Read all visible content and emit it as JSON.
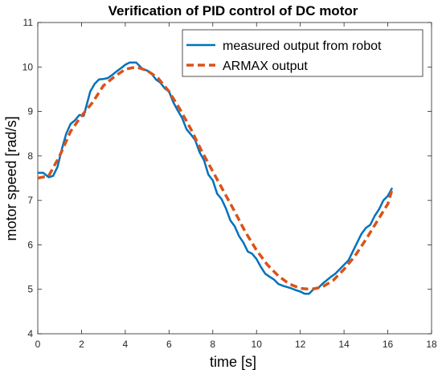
{
  "chart_data": {
    "type": "line",
    "title": "Verification of PID control of DC motor",
    "xlabel": "time [s]",
    "ylabel": "motor speed [rad/s]",
    "xlim": [
      0,
      18
    ],
    "ylim": [
      4,
      11
    ],
    "xticks": [
      0,
      2,
      4,
      6,
      8,
      10,
      12,
      14,
      16,
      18
    ],
    "yticks": [
      4,
      5,
      6,
      7,
      8,
      9,
      10,
      11
    ],
    "xtick_labels": [
      "0",
      "2",
      "4",
      "6",
      "8",
      "10",
      "12",
      "14",
      "16",
      "18"
    ],
    "ytick_labels": [
      "4",
      "5",
      "6",
      "7",
      "8",
      "9",
      "10",
      "11"
    ],
    "grid": false,
    "legend_position": "top-right",
    "series": [
      {
        "name": "measured output from robot",
        "color": "#0072BD",
        "style": "solid",
        "x": [
          0.0,
          0.25,
          0.5,
          0.7,
          0.9,
          1.1,
          1.3,
          1.5,
          1.7,
          1.9,
          2.1,
          2.4,
          2.6,
          2.8,
          3.0,
          3.2,
          3.4,
          3.6,
          3.8,
          4.0,
          4.2,
          4.5,
          4.8,
          5.0,
          5.2,
          5.4,
          5.6,
          5.8,
          6.0,
          6.2,
          6.4,
          6.6,
          6.8,
          7.0,
          7.2,
          7.4,
          7.6,
          7.8,
          8.0,
          8.2,
          8.4,
          8.6,
          8.8,
          9.0,
          9.2,
          9.4,
          9.6,
          9.8,
          10.0,
          10.2,
          10.4,
          10.6,
          10.8,
          11.0,
          11.2,
          11.4,
          11.6,
          11.8,
          12.0,
          12.2,
          12.4,
          12.6,
          12.8,
          13.0,
          13.2,
          13.4,
          13.6,
          13.8,
          14.0,
          14.2,
          14.4,
          14.6,
          14.8,
          15.0,
          15.2,
          15.4,
          15.6,
          15.8,
          16.0,
          16.2
        ],
        "y": [
          7.62,
          7.62,
          7.52,
          7.55,
          7.75,
          8.15,
          8.5,
          8.72,
          8.8,
          8.92,
          8.9,
          9.45,
          9.62,
          9.72,
          9.73,
          9.75,
          9.82,
          9.9,
          9.97,
          10.05,
          10.1,
          10.1,
          9.95,
          9.92,
          9.85,
          9.72,
          9.65,
          9.52,
          9.45,
          9.2,
          9.02,
          8.85,
          8.6,
          8.48,
          8.35,
          8.08,
          7.9,
          7.58,
          7.45,
          7.15,
          7.03,
          6.82,
          6.55,
          6.42,
          6.2,
          6.05,
          5.85,
          5.8,
          5.68,
          5.5,
          5.35,
          5.28,
          5.22,
          5.12,
          5.08,
          5.05,
          5.02,
          4.98,
          4.95,
          4.9,
          4.9,
          5.0,
          5.02,
          5.12,
          5.2,
          5.28,
          5.35,
          5.45,
          5.55,
          5.65,
          5.85,
          6.05,
          6.25,
          6.38,
          6.45,
          6.65,
          6.8,
          7.0,
          7.1,
          7.28
        ]
      },
      {
        "name": "ARMAX output",
        "color": "#D95319",
        "style": "dashed",
        "x": [
          0.0,
          0.5,
          1.0,
          1.5,
          2.0,
          2.5,
          3.0,
          3.5,
          4.0,
          4.5,
          5.0,
          5.5,
          6.0,
          6.5,
          7.0,
          7.5,
          8.0,
          8.5,
          9.0,
          9.5,
          10.0,
          10.5,
          11.0,
          11.5,
          12.0,
          12.5,
          13.0,
          13.5,
          14.0,
          14.5,
          15.0,
          15.5,
          16.0,
          16.2
        ],
        "y": [
          7.5,
          7.55,
          8.0,
          8.55,
          8.9,
          9.2,
          9.58,
          9.78,
          9.95,
          10.0,
          9.92,
          9.75,
          9.45,
          9.05,
          8.6,
          8.1,
          7.65,
          7.2,
          6.75,
          6.28,
          5.88,
          5.55,
          5.3,
          5.12,
          5.02,
          5.0,
          5.05,
          5.2,
          5.45,
          5.75,
          6.12,
          6.52,
          6.92,
          7.25
        ]
      }
    ]
  }
}
